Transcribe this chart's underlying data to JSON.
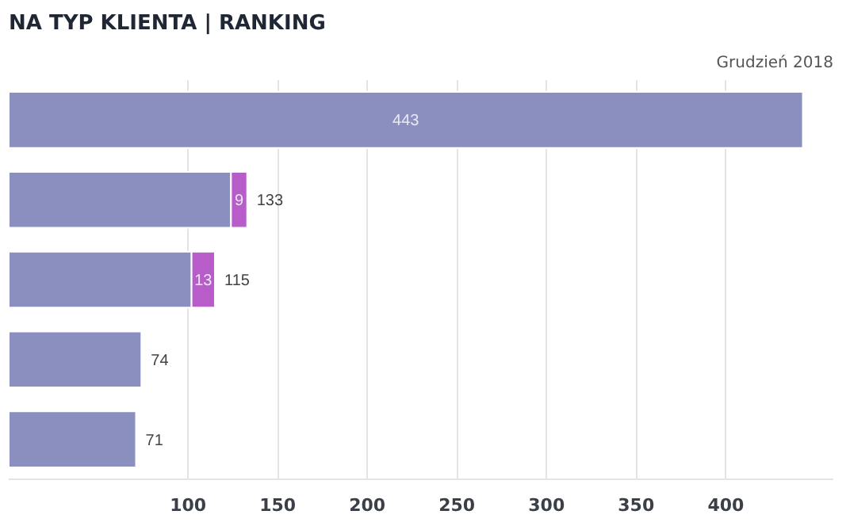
{
  "chart_data": {
    "type": "bar",
    "orientation": "horizontal",
    "stacked": true,
    "title": "NA TYP KLIENTA | RANKING",
    "annotations": [
      "Grudzień 2018"
    ],
    "categories": [
      null,
      null,
      null,
      null,
      null
    ],
    "series": [
      {
        "color": "#8b8fc0",
        "values": [
          443,
          124,
          102,
          74,
          71
        ],
        "value_labels": [
          "443",
          null,
          null,
          null,
          null
        ]
      },
      {
        "color": "#b75cc9",
        "values": [
          null,
          9,
          13,
          null,
          null
        ],
        "value_labels": [
          null,
          "9",
          "13",
          null,
          null
        ]
      }
    ],
    "totals": [
      null,
      "133",
      "115",
      "74",
      "71"
    ],
    "xlim": [
      0,
      460
    ],
    "xticks": [
      100,
      150,
      200,
      250,
      300,
      350,
      400
    ],
    "grid": "x",
    "tick_labels": "x"
  }
}
